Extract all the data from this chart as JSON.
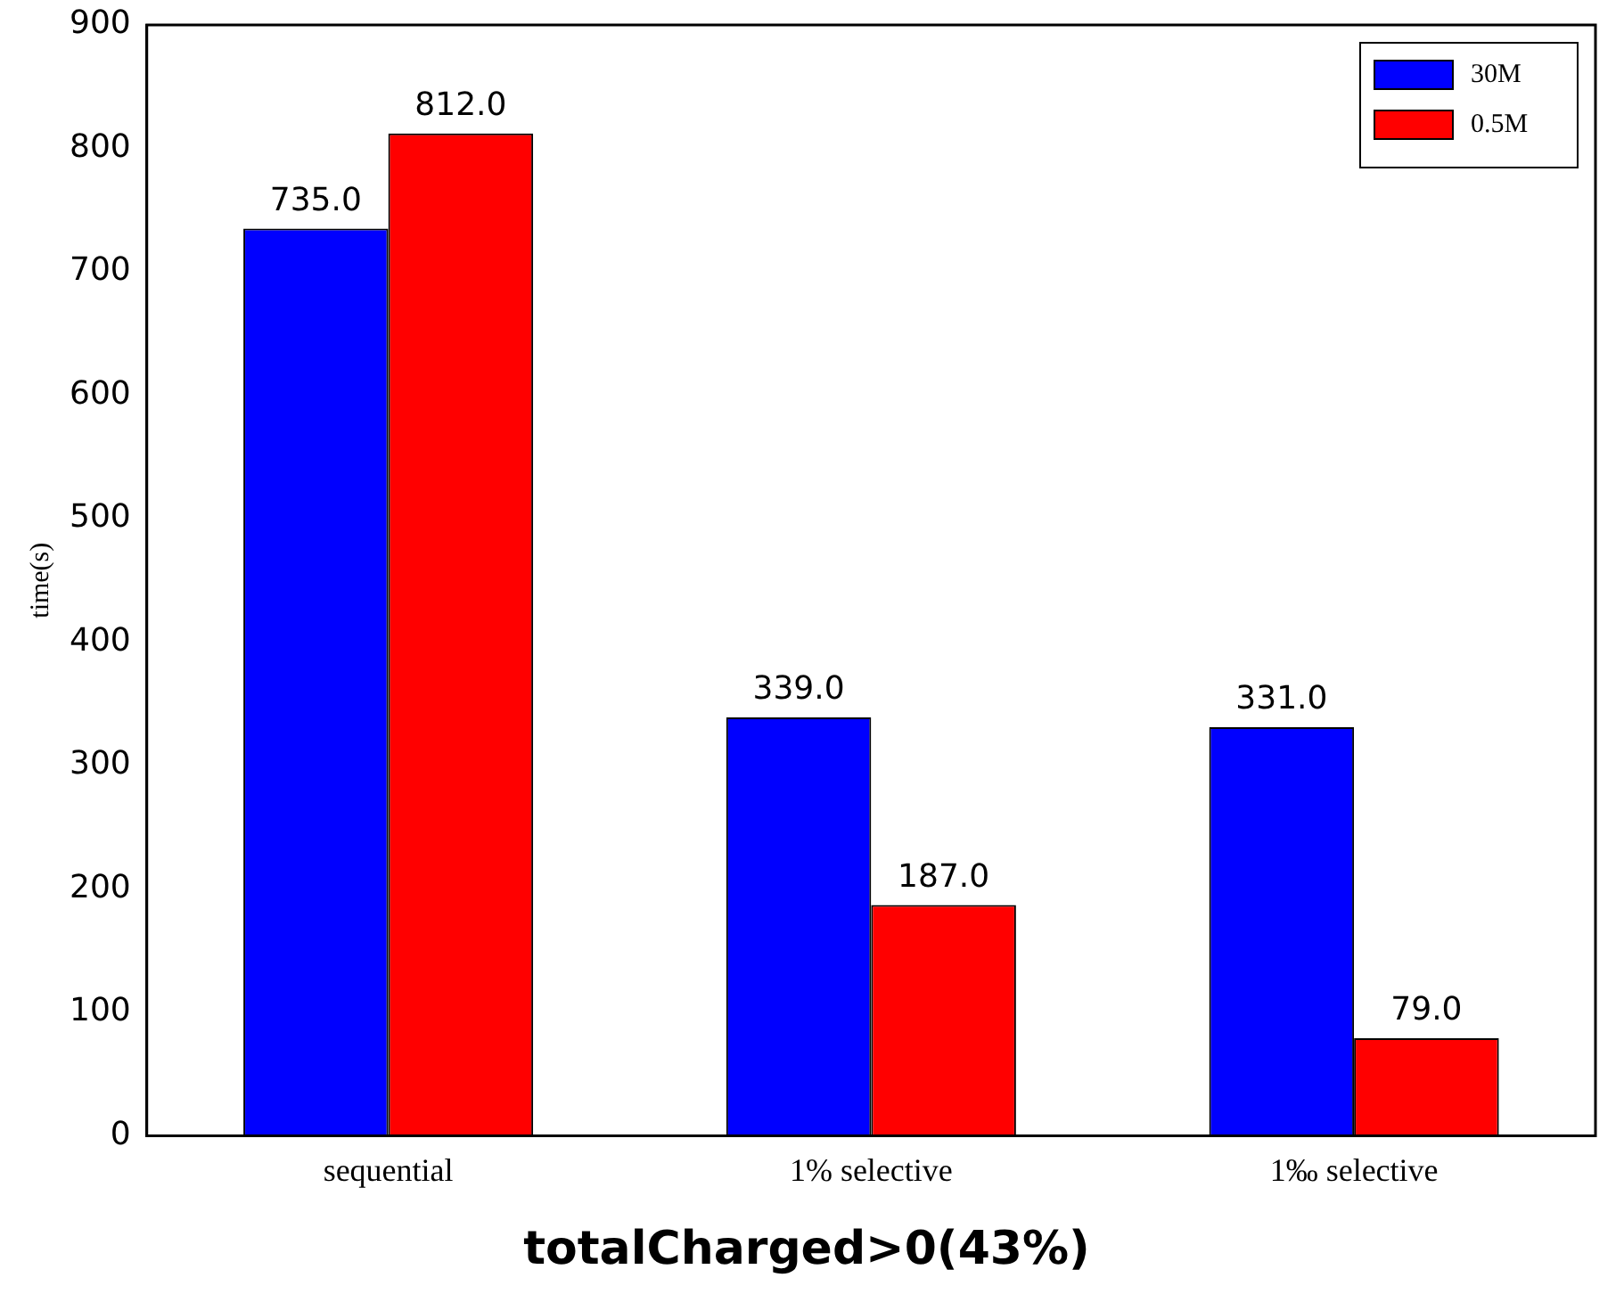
{
  "chart_data": {
    "type": "bar",
    "title": "totalCharged>0(43%)",
    "ylabel": "time(s)",
    "categories": [
      "sequential",
      "1% selective",
      "1‰ selective"
    ],
    "series": [
      {
        "name": "30M",
        "color": "#0000ff",
        "values": [
          735.0,
          339.0,
          331.0
        ],
        "value_labels": [
          "735.0",
          "339.0",
          "331.0"
        ]
      },
      {
        "name": "0.5M",
        "color": "#ff0000",
        "values": [
          812.0,
          187.0,
          79.0
        ],
        "value_labels": [
          "812.0",
          "187.0",
          "79.0"
        ]
      }
    ],
    "ylim": [
      0,
      900
    ],
    "yticks": [
      0,
      100,
      200,
      300,
      400,
      500,
      600,
      700,
      800,
      900
    ],
    "grid": false,
    "legend": "top right"
  }
}
